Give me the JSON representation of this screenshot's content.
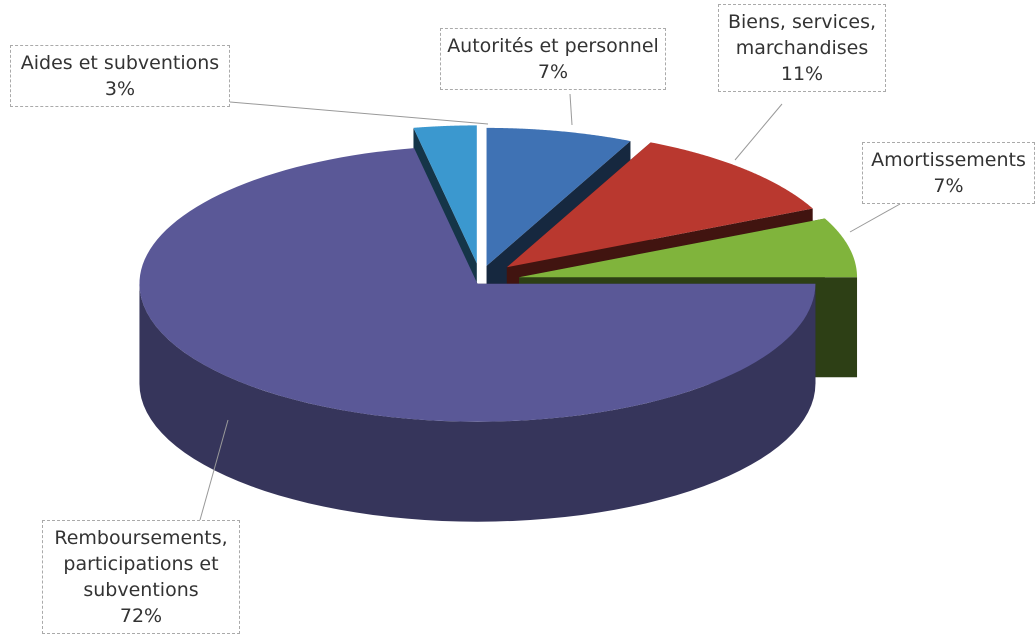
{
  "chart_data": {
    "type": "pie3d",
    "categories": [
      "Autorités et personnel",
      "Biens, services, marchandises",
      "Amortissements",
      "Remboursements, participations et subventions",
      "Aides et subventions"
    ],
    "values": [
      7,
      11,
      7,
      72,
      3
    ],
    "value_labels": [
      "7%",
      "11%",
      "7%",
      "72%",
      "3%"
    ],
    "colors": [
      "#3f72b4",
      "#b9382f",
      "#80b43c",
      "#5a5897",
      "#3b98cf"
    ]
  }
}
